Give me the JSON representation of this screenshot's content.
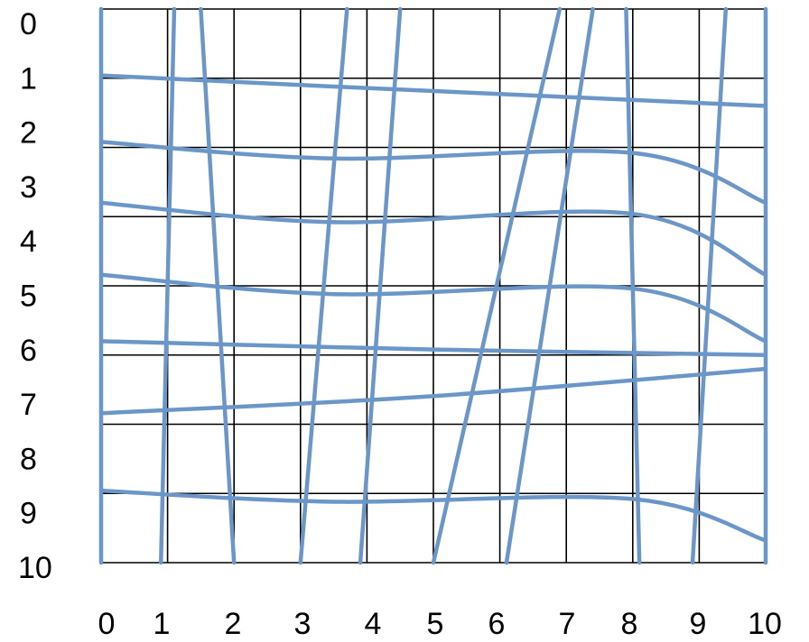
{
  "diagram": {
    "y_axis_labels": [
      "0",
      "1",
      "2",
      "3",
      "4",
      "5",
      "6",
      "7",
      "8",
      "9",
      "10"
    ],
    "x_axis_labels": [
      "0",
      "1",
      "2",
      "3",
      "4",
      "5",
      "6",
      "7",
      "8",
      "9",
      "10"
    ],
    "colors": {
      "grid": "#000000",
      "curves": "#6b96c8",
      "background": "#ffffff"
    },
    "vertical_curves": [
      [
        [
          0,
          0
        ],
        [
          0,
          10
        ]
      ],
      [
        [
          1.1,
          0
        ],
        [
          0.9,
          10
        ]
      ],
      [
        [
          1.5,
          0
        ],
        [
          2,
          10
        ]
      ],
      [
        [
          3.7,
          0
        ],
        [
          3,
          10
        ]
      ],
      [
        [
          4.5,
          0
        ],
        [
          3.9,
          10
        ]
      ],
      [
        [
          6.9,
          0
        ],
        [
          5,
          10
        ]
      ],
      [
        [
          7.4,
          0
        ],
        [
          6.1,
          10
        ]
      ],
      [
        [
          7.9,
          0
        ],
        [
          8.1,
          10
        ]
      ],
      [
        [
          9.4,
          0
        ],
        [
          8.9,
          10
        ]
      ],
      [
        [
          10,
          0
        ],
        [
          10,
          10
        ]
      ]
    ],
    "horizontal_curves": [
      [
        [
          0,
          1.2
        ],
        [
          3.5,
          1.4
        ],
        [
          10,
          1.75
        ]
      ],
      [
        [
          0,
          2.4
        ],
        [
          3.5,
          2.7
        ],
        [
          8,
          2.6
        ],
        [
          10,
          3.5
        ]
      ],
      [
        [
          0,
          3.5
        ],
        [
          3.5,
          3.85
        ],
        [
          8,
          3.7
        ],
        [
          10,
          4.8
        ]
      ],
      [
        [
          0,
          4.8
        ],
        [
          3.5,
          5.15
        ],
        [
          8,
          5.05
        ],
        [
          10,
          6.0
        ]
      ],
      [
        [
          0,
          6.0
        ],
        [
          5,
          6.15
        ],
        [
          10,
          6.25
        ]
      ],
      [
        [
          0,
          7.3
        ],
        [
          4.9,
          7.0
        ],
        [
          10,
          6.5
        ]
      ],
      [
        [
          0,
          8.7
        ],
        [
          3.5,
          8.9
        ],
        [
          8,
          8.85
        ],
        [
          10,
          9.6
        ]
      ]
    ]
  }
}
